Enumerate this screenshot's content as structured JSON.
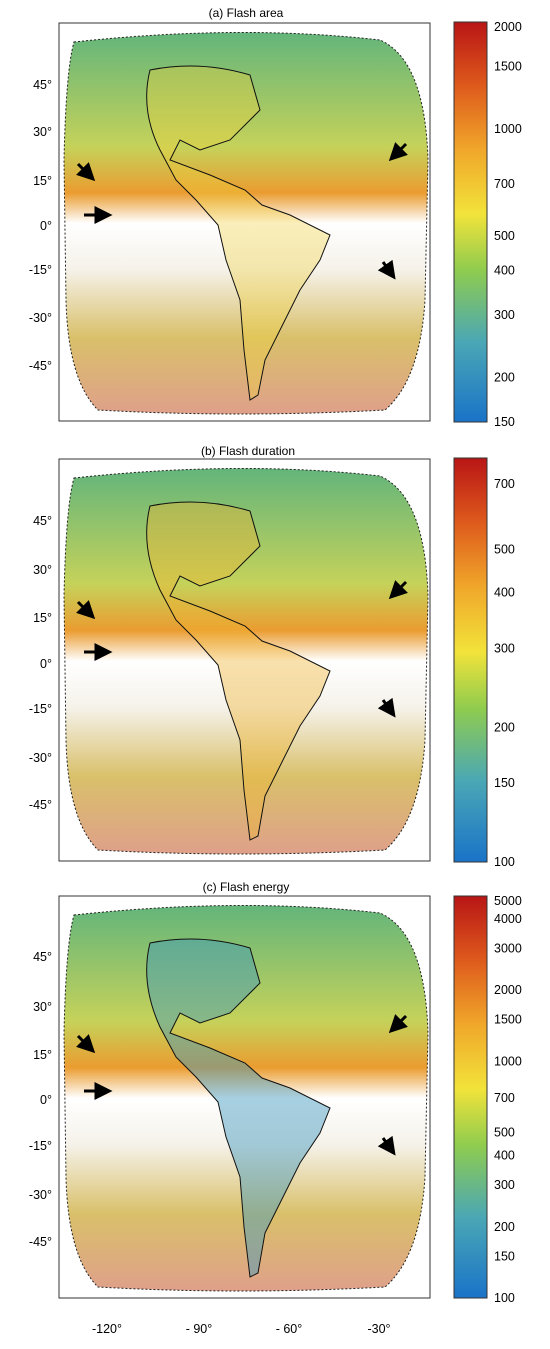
{
  "chart_data": [
    {
      "type": "heatmap",
      "title": "(a) Flash area",
      "colorbar": {
        "scale": "log",
        "range": [
          150,
          2000
        ],
        "ticks": [
          150,
          200,
          300,
          400,
          500,
          700,
          1000,
          1500,
          2000
        ],
        "colormap": "blue-green-yellow-orange-red"
      },
      "latitude_ticks": [
        "45°",
        "30°",
        "15°",
        "0°",
        "-15°",
        "-30°",
        "-45°"
      ],
      "annotations": [
        "arrow",
        "arrow",
        "arrow",
        "arrow"
      ]
    },
    {
      "type": "heatmap",
      "title": "(b) Flash duration",
      "colorbar": {
        "scale": "log",
        "range": [
          100,
          800
        ],
        "ticks": [
          100,
          150,
          200,
          300,
          400,
          500,
          700
        ],
        "colormap": "blue-green-yellow-orange-red"
      },
      "latitude_ticks": [
        "45°",
        "30°",
        "15°",
        "0°",
        "-15°",
        "-30°",
        "-45°"
      ],
      "annotations": [
        "arrow",
        "arrow",
        "arrow",
        "arrow"
      ]
    },
    {
      "type": "heatmap",
      "title": "(c) Flash energy",
      "colorbar": {
        "scale": "log",
        "range": [
          100,
          5000
        ],
        "ticks": [
          100,
          150,
          200,
          300,
          400,
          500,
          700,
          1000,
          1500,
          2000,
          3000,
          4000,
          5000
        ],
        "colormap": "blue-green-yellow-orange-red"
      },
      "latitude_ticks": [
        "45°",
        "30°",
        "15°",
        "0°",
        "-15°",
        "-30°",
        "-45°"
      ],
      "longitude_ticks": [
        "-120°",
        "- 90°",
        "- 60°",
        "-30°"
      ],
      "annotations": [
        "arrow",
        "arrow",
        "arrow",
        "arrow"
      ]
    }
  ],
  "colors": {
    "blue": "#1a73c8",
    "green": "#59b35c",
    "yellow": "#f2d21a",
    "orange": "#ec8c24",
    "red": "#b81515"
  }
}
